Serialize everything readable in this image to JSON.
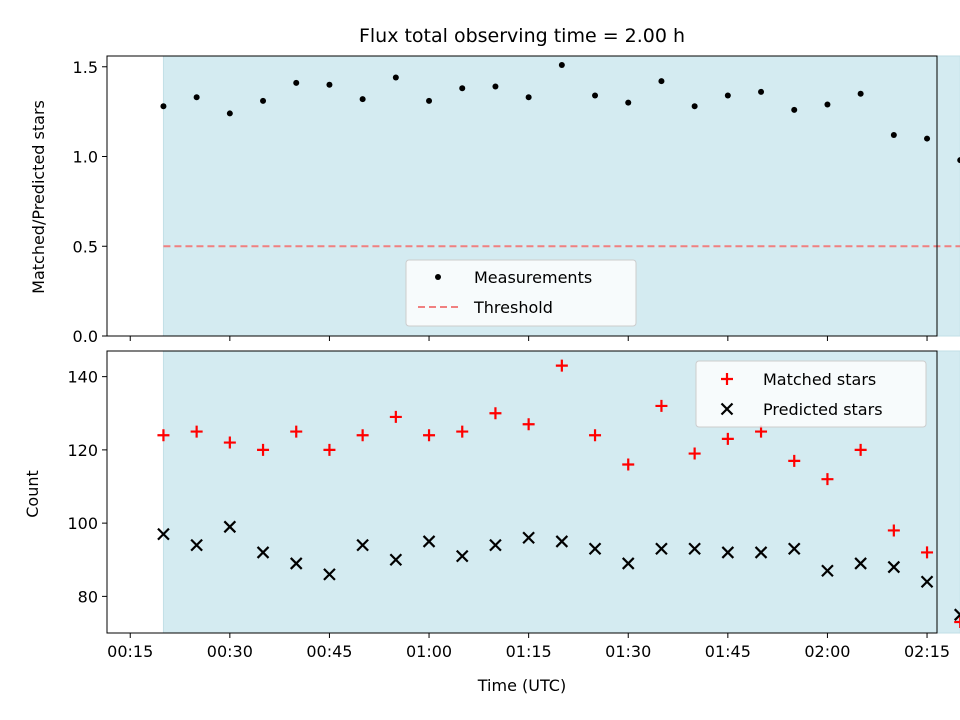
{
  "chart_data": [
    {
      "type": "scatter",
      "title": "Flux total observing time = 2.00 h",
      "ylabel": "Matched/Predicted stars",
      "xlabel": "",
      "ylim": [
        0,
        1.56
      ],
      "yticks": [
        "0.0",
        "0.5",
        "1.0",
        "1.5"
      ],
      "ytick_values": [
        0,
        0.5,
        1.0,
        1.5
      ],
      "x_unit": "minutes after 00:00 UTC",
      "xlim_minutes": [
        11.5,
        136.5
      ],
      "shaded_span_minutes": [
        20,
        140
      ],
      "shade_color": "#d4ebf1",
      "x": [
        20,
        25,
        30,
        35,
        40,
        45,
        50,
        55,
        60,
        65,
        70,
        75,
        80,
        85,
        90,
        95,
        100,
        105,
        110,
        115,
        120,
        125,
        130,
        135,
        140
      ],
      "series": [
        {
          "name": "Measurements",
          "marker": "dot",
          "color": "#000000",
          "values": [
            1.28,
            1.33,
            1.24,
            1.31,
            1.41,
            1.4,
            1.32,
            1.44,
            1.31,
            1.38,
            1.39,
            1.33,
            1.51,
            1.34,
            1.3,
            1.42,
            1.28,
            1.34,
            1.36,
            1.26,
            1.29,
            1.35,
            1.12,
            1.1,
            0.98
          ]
        },
        {
          "name": "Threshold",
          "marker": "dashed-line",
          "color": "#f08080",
          "values": [
            0.5
          ]
        }
      ],
      "legend": {
        "position": "lower-center",
        "entries": [
          "Measurements",
          "Threshold"
        ]
      }
    },
    {
      "type": "scatter",
      "ylabel": "Count",
      "xlabel": "Time (UTC)",
      "ylim": [
        70,
        147
      ],
      "yticks": [
        "80",
        "100",
        "120",
        "140"
      ],
      "ytick_values": [
        80,
        100,
        120,
        140
      ],
      "xticks": [
        "00:15",
        "00:30",
        "00:45",
        "01:00",
        "01:15",
        "01:30",
        "01:45",
        "02:00",
        "02:15"
      ],
      "xtick_values": [
        15,
        30,
        45,
        60,
        75,
        90,
        105,
        120,
        135
      ],
      "x": [
        20,
        25,
        30,
        35,
        40,
        45,
        50,
        55,
        60,
        65,
        70,
        75,
        80,
        85,
        90,
        95,
        100,
        105,
        110,
        115,
        120,
        125,
        130,
        135,
        140
      ],
      "series": [
        {
          "name": "Matched stars",
          "marker": "plus",
          "color": "#ff0000",
          "values": [
            124,
            125,
            122,
            120,
            125,
            120,
            124,
            129,
            124,
            125,
            130,
            127,
            143,
            124,
            116,
            132,
            119,
            123,
            125,
            117,
            112,
            120,
            98,
            92,
            73
          ]
        },
        {
          "name": "Predicted stars",
          "marker": "x",
          "color": "#000000",
          "values": [
            97,
            94,
            99,
            92,
            89,
            86,
            94,
            90,
            95,
            91,
            94,
            96,
            95,
            93,
            89,
            93,
            93,
            92,
            92,
            93,
            87,
            89,
            88,
            84,
            75
          ]
        }
      ],
      "legend": {
        "position": "upper-right",
        "entries": [
          "Matched stars",
          "Predicted stars"
        ]
      }
    }
  ]
}
